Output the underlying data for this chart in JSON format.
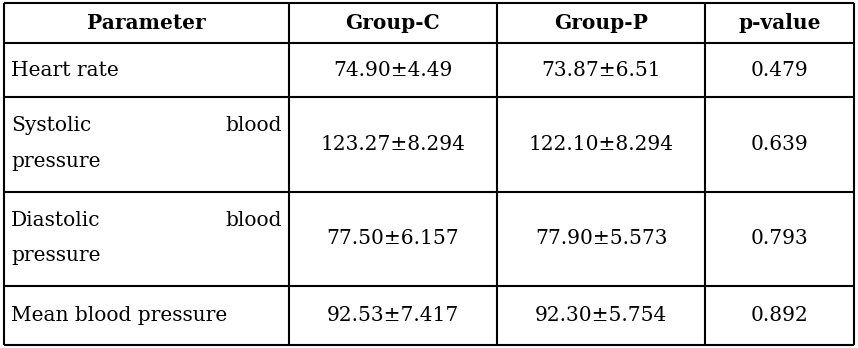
{
  "headers": [
    "Parameter",
    "Group-C",
    "Group-P",
    "p-value"
  ],
  "rows": [
    [
      [
        "Heart rate"
      ],
      "74.90±4.49",
      "73.87±6.51",
      "0.479"
    ],
    [
      [
        "Systolic  blood",
        "pressure"
      ],
      "123.27±8.294",
      "122.10±8.294",
      "0.639"
    ],
    [
      [
        "Diastolic  blood",
        "pressure"
      ],
      "77.50±6.157",
      "77.90±5.573",
      "0.793"
    ],
    [
      [
        "Mean blood pressure"
      ],
      "92.53±7.417",
      "92.30±5.754",
      "0.892"
    ]
  ],
  "font_size": 14.5,
  "header_font_size": 14.5,
  "bg_color": "#ffffff",
  "border_color": "#000000",
  "text_color": "#000000",
  "fig_width": 8.58,
  "fig_height": 3.48
}
